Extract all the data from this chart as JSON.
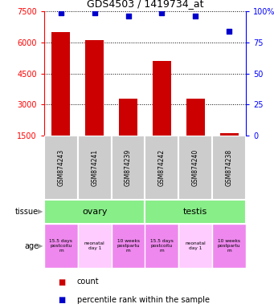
{
  "title": "GDS4503 / 1419734_at",
  "samples": [
    "GSM874243",
    "GSM874241",
    "GSM874239",
    "GSM874242",
    "GSM874240",
    "GSM874238"
  ],
  "counts": [
    6500,
    6100,
    3300,
    5100,
    3300,
    1600
  ],
  "percentiles": [
    99,
    99,
    96,
    99,
    96,
    84
  ],
  "ylim_left": [
    1500,
    7500
  ],
  "yticks_left": [
    1500,
    3000,
    4500,
    6000,
    7500
  ],
  "ylim_right": [
    0,
    100
  ],
  "yticks_right": [
    0,
    25,
    50,
    75,
    100
  ],
  "bar_color": "#cc0000",
  "dot_color": "#0000cc",
  "bar_width": 0.55,
  "tissue_color": "#88ee88",
  "age_colors": [
    "#ee88ee",
    "#ffccff",
    "#ee88ee",
    "#ee88ee",
    "#ffccff",
    "#ee88ee"
  ],
  "age_labels": [
    "15.5 days\npostcoitu\nm",
    "neonatal\nday 1",
    "10 weeks\npostpartu\nm",
    "15.5 days\npostcoitu\nm",
    "neonatal\nday 1",
    "10 weeks\npostpartu\nm"
  ],
  "sample_bg_color": "#cccccc",
  "legend_count_color": "#cc0000",
  "legend_dot_color": "#0000cc"
}
